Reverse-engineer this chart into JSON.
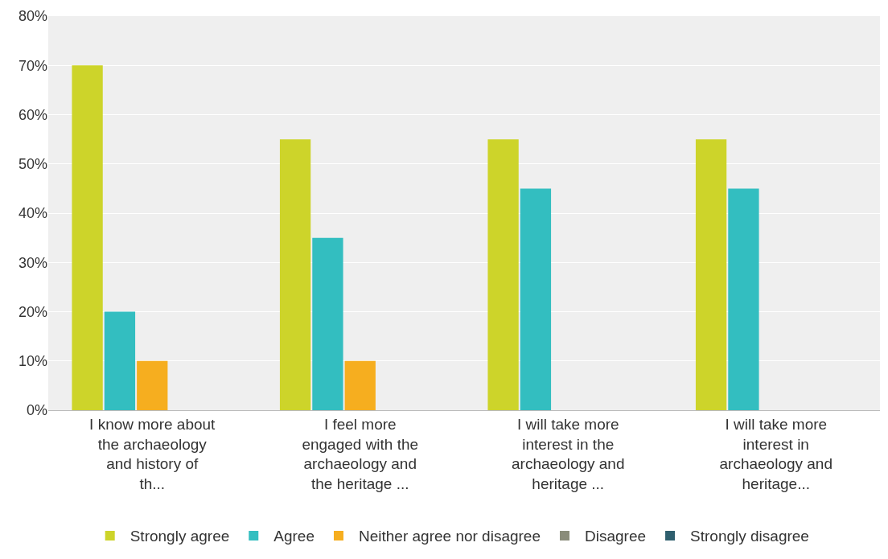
{
  "chart_data": {
    "type": "bar",
    "categories": [
      "I know more about the archaeology and history of th...",
      "I feel more engaged with the archaeology and the heritage ...",
      "I will take more interest in the archaeology and heritage ...",
      "I will take more interest in archaeology and heritage..."
    ],
    "series": [
      {
        "name": "Strongly agree",
        "color": "#cdd42a",
        "values": [
          70,
          55,
          55,
          55
        ]
      },
      {
        "name": "Agree",
        "color": "#33bec0",
        "values": [
          20,
          35,
          45,
          45
        ]
      },
      {
        "name": "Neither agree nor disagree",
        "color": "#f6ae1f",
        "values": [
          10,
          10,
          0,
          0
        ]
      },
      {
        "name": "Disagree",
        "color": "#8a8c7a",
        "values": [
          0,
          0,
          0,
          0
        ]
      },
      {
        "name": "Strongly disagree",
        "color": "#2f5f6e",
        "values": [
          0,
          0,
          0,
          0
        ]
      }
    ],
    "ylim": [
      0,
      80
    ],
    "yticks": [
      {
        "value": 0,
        "label": "0%"
      },
      {
        "value": 10,
        "label": "10%"
      },
      {
        "value": 20,
        "label": "20%"
      },
      {
        "value": 30,
        "label": "30%"
      },
      {
        "value": 40,
        "label": "40%"
      },
      {
        "value": 50,
        "label": "50%"
      },
      {
        "value": 60,
        "label": "60%"
      },
      {
        "value": 70,
        "label": "70%"
      },
      {
        "value": 80,
        "label": "80%"
      }
    ],
    "grid": "y",
    "legend": "bottom"
  }
}
